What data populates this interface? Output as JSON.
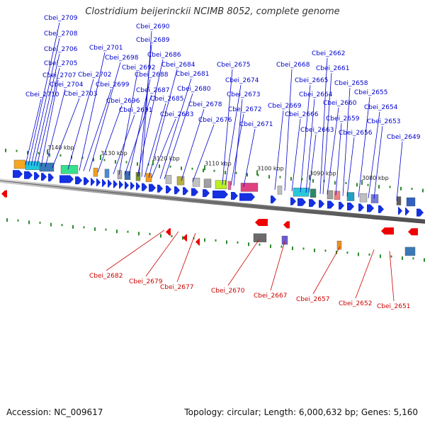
{
  "title": "Clostridium beijerinckii NCIMB 8052, complete genome",
  "footer": {
    "accession": "Accession: NC_009617",
    "summary": "Topology: circular; Length: 6,000,632 bp; Genes: 5,160"
  },
  "colors": {
    "forward_label": "#0000cc",
    "reverse_label": "#cc0000",
    "forward_gene": "#1430e0",
    "reverse_gene": "#ee0000",
    "backbone": "#7a7a7a",
    "tick": "#2e8b2e"
  },
  "scale_labels": [
    "3140 kbp",
    "3130 kbp",
    "3120 kbp",
    "3110 kbp",
    "3100 kbp",
    "3090 kbp",
    "3080 kbp"
  ],
  "forward_labels": [
    "Cbei_2709",
    "Cbei_2708",
    "Cbei_2706",
    "Cbei_2705",
    "Cbei_2707",
    "Cbei_2704",
    "Cbei_2710",
    "Cbei_2703",
    "Cbei_2702",
    "Cbei_2701",
    "Cbei_2698",
    "Cbei_2699",
    "Cbei_2696",
    "Cbei_2690",
    "Cbei_2689",
    "Cbei_2686",
    "Cbei_2692",
    "Cbei_2688",
    "Cbei_2687",
    "Cbei_2691",
    "Cbei_2684",
    "Cbei_2681",
    "Cbei_2685",
    "Cbei_2680",
    "Cbei_2683",
    "Cbei_2678",
    "Cbei_2675",
    "Cbei_2674",
    "Cbei_2676",
    "Cbei_2673",
    "Cbei_2672",
    "Cbei_2671",
    "Cbei_2669",
    "Cbei_2668",
    "Cbei_2666",
    "Cbei_2665",
    "Cbei_2664",
    "Cbei_2663",
    "Cbei_2662",
    "Cbei_2661",
    "Cbei_2660",
    "Cbei_2659",
    "Cbei_2658",
    "Cbei_2656",
    "Cbei_2655",
    "Cbei_2654",
    "Cbei_2653",
    "Cbei_2649"
  ],
  "reverse_labels": [
    "Cbei_2682",
    "Cbei_2679",
    "Cbei_2677",
    "Cbei_2670",
    "Cbei_2667",
    "Cbei_2657",
    "Cbei_2652",
    "Cbei_2651"
  ]
}
